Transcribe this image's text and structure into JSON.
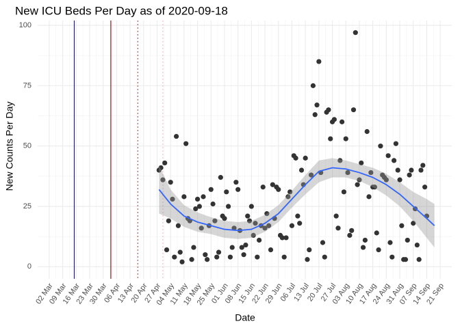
{
  "chart_data": {
    "type": "scatter",
    "title": "New ICU Beds Per Day as of 2020-09-18",
    "x_label": "Date",
    "y_label": "New Counts Per Day",
    "xlim": [
      "25 Feb",
      "27 Sep"
    ],
    "ylim": [
      -5,
      102
    ],
    "yticks": [
      0,
      25,
      50,
      75,
      100
    ],
    "xticks": [
      "02 Mar",
      "09 Mar",
      "16 Mar",
      "23 Mar",
      "30 Mar",
      "06 Apr",
      "13 Apr",
      "20 Apr",
      "27 Apr",
      "04 May",
      "11 May",
      "18 May",
      "25 May",
      "01 Jun",
      "08 Jun",
      "15 Jun",
      "22 Jun",
      "29 Jun",
      "06 Jul",
      "13 Jul",
      "20 Jul",
      "27 Jul",
      "03 Aug",
      "10 Aug",
      "17 Aug",
      "24 Aug",
      "31 Aug",
      "07 Sep",
      "14 Sep",
      "21 Sep"
    ],
    "grid": true,
    "color": "#333333",
    "vlines": [
      {
        "x": "15 Mar",
        "color": "#191970",
        "dash": false
      },
      {
        "x": "03 Apr",
        "color": "#8b0000",
        "dash": false
      },
      {
        "x": "17 Apr",
        "color": "#e03030",
        "dash": true
      },
      {
        "x": "30 Apr",
        "color": "#f0b8c8",
        "dash": true
      }
    ],
    "x": [
      "28 Apr",
      "29 Apr",
      "30 Apr",
      "01 May",
      "02 May",
      "03 May",
      "04 May",
      "05 May",
      "06 May",
      "07 May",
      "08 May",
      "09 May",
      "10 May",
      "11 May",
      "12 May",
      "13 May",
      "14 May",
      "15 May",
      "16 May",
      "17 May",
      "18 May",
      "19 May",
      "20 May",
      "21 May",
      "22 May",
      "23 May",
      "24 May",
      "25 May",
      "26 May",
      "27 May",
      "28 May",
      "29 May",
      "30 May",
      "31 May",
      "01 Jun",
      "02 Jun",
      "03 Jun",
      "04 Jun",
      "05 Jun",
      "06 Jun",
      "07 Jun",
      "08 Jun",
      "09 Jun",
      "10 Jun",
      "11 Jun",
      "12 Jun",
      "13 Jun",
      "14 Jun",
      "15 Jun",
      "16 Jun",
      "17 Jun",
      "18 Jun",
      "19 Jun",
      "20 Jun",
      "21 Jun",
      "22 Jun",
      "23 Jun",
      "24 Jun",
      "25 Jun",
      "26 Jun",
      "27 Jun",
      "28 Jun",
      "29 Jun",
      "30 Jun",
      "01 Jul",
      "02 Jul",
      "03 Jul",
      "04 Jul",
      "05 Jul",
      "06 Jul",
      "07 Jul",
      "08 Jul",
      "09 Jul",
      "10 Jul",
      "11 Jul",
      "12 Jul",
      "13 Jul",
      "14 Jul",
      "15 Jul",
      "16 Jul",
      "17 Jul",
      "18 Jul",
      "19 Jul",
      "20 Jul",
      "21 Jul",
      "22 Jul",
      "23 Jul",
      "24 Jul",
      "25 Jul",
      "26 Jul",
      "27 Jul",
      "28 Jul",
      "29 Jul",
      "30 Jul",
      "31 Jul",
      "01 Aug",
      "02 Aug",
      "03 Aug",
      "04 Aug",
      "05 Aug",
      "06 Aug",
      "07 Aug",
      "08 Aug",
      "09 Aug",
      "10 Aug",
      "11 Aug",
      "12 Aug",
      "13 Aug",
      "14 Aug",
      "15 Aug",
      "16 Aug",
      "17 Aug",
      "18 Aug",
      "19 Aug",
      "20 Aug",
      "21 Aug",
      "22 Aug",
      "23 Aug",
      "24 Aug",
      "25 Aug",
      "26 Aug",
      "27 Aug",
      "28 Aug",
      "29 Aug",
      "30 Aug",
      "31 Aug",
      "01 Sep",
      "02 Sep",
      "03 Sep",
      "04 Sep",
      "05 Sep",
      "06 Sep",
      "07 Sep",
      "08 Sep",
      "09 Sep",
      "10 Sep",
      "11 Sep",
      "12 Sep",
      "13 Sep",
      "14 Sep"
    ],
    "values": [
      40,
      41,
      36,
      43,
      7,
      19,
      35,
      28,
      4,
      54,
      17,
      6,
      2,
      29,
      51,
      20,
      19,
      3,
      8,
      24,
      28,
      25,
      16,
      29,
      5,
      3,
      17,
      32,
      26,
      19,
      4,
      6,
      37,
      21,
      20,
      31,
      25,
      4,
      8,
      16,
      35,
      32,
      15,
      8,
      5,
      9,
      21,
      19,
      25,
      13,
      18,
      4,
      11,
      17,
      33,
      16,
      22,
      17,
      7,
      34,
      20,
      33,
      32,
      13,
      12,
      4,
      12,
      29,
      31,
      17,
      46,
      45,
      21,
      18,
      40,
      34,
      45,
      3,
      7,
      38,
      75,
      63,
      67,
      85,
      39,
      10,
      4,
      64,
      65,
      53,
      60,
      61,
      21,
      16,
      44,
      60,
      31,
      53,
      39,
      13,
      15,
      65,
      97,
      34,
      36,
      43,
      8,
      11,
      56,
      29,
      39,
      33,
      33,
      14,
      7,
      50,
      38,
      37,
      36,
      46,
      10,
      4,
      44,
      51,
      40,
      36,
      17,
      3,
      3,
      11,
      38,
      40,
      18,
      24,
      9,
      3,
      40,
      42,
      33,
      21
    ],
    "smooth": {
      "color": "#3366ff",
      "x": [
        "28 Apr",
        "04 May",
        "11 May",
        "18 May",
        "25 May",
        "01 Jun",
        "08 Jun",
        "15 Jun",
        "22 Jun",
        "29 Jun",
        "06 Jul",
        "13 Jul",
        "20 Jul",
        "27 Jul",
        "03 Aug",
        "10 Aug",
        "17 Aug",
        "24 Aug",
        "31 Aug",
        "07 Sep",
        "14 Sep",
        "18 Sep"
      ],
      "values": [
        32,
        26,
        21,
        18.5,
        17,
        15.5,
        15,
        15.5,
        18,
        22,
        28,
        34,
        39.5,
        41,
        40.5,
        39,
        37,
        34,
        30,
        25,
        20,
        17
      ],
      "lower": [
        22,
        20,
        16.5,
        14.5,
        13.5,
        12,
        11.5,
        12,
        14.5,
        18.5,
        24.5,
        30,
        35,
        37,
        37,
        35.5,
        33,
        29.5,
        25,
        19,
        12,
        8
      ],
      "upper": [
        42,
        32,
        25.5,
        22.5,
        20.5,
        19,
        18.5,
        19,
        21.5,
        25.5,
        31.5,
        38,
        44,
        45,
        44,
        42.5,
        41,
        38.5,
        35,
        31,
        28,
        26
      ]
    }
  }
}
